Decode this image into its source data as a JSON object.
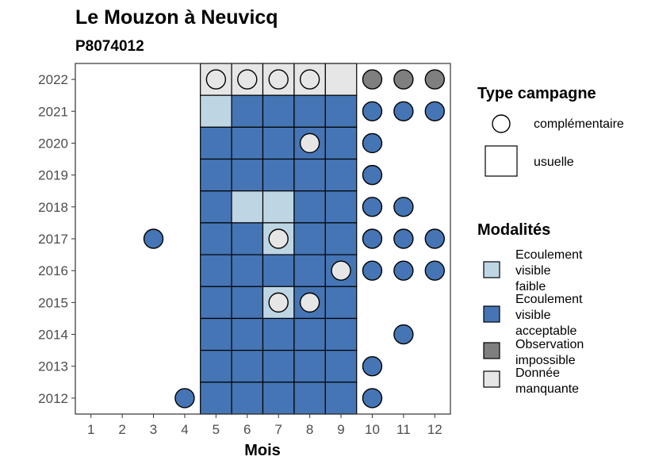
{
  "chart_data": {
    "type": "heatmap",
    "title": "Le Mouzon à Neuvicq",
    "subtitle": "P8074012",
    "xlabel": "Mois",
    "ylabel": "",
    "x_ticks": [
      "1",
      "2",
      "3",
      "4",
      "5",
      "6",
      "7",
      "8",
      "9",
      "10",
      "11",
      "12"
    ],
    "y_ticks": [
      "2022",
      "2021",
      "2020",
      "2019",
      "2018",
      "2017",
      "2016",
      "2015",
      "2014",
      "2013",
      "2012"
    ],
    "grid": false,
    "colors": {
      "Ecoulement visible faible": "#bed6e4",
      "Ecoulement visible acceptable": "#4575b4",
      "Observation impossible": "#7f7f7f",
      "Donnée manquante": "#e6e6e6"
    },
    "legend_type": {
      "title": "Type campagne",
      "items": [
        {
          "label": "complémentaire",
          "shape": "circle"
        },
        {
          "label": "usuelle",
          "shape": "square"
        }
      ]
    },
    "legend_modalites": {
      "title": "Modalités",
      "items": [
        {
          "key": "Ecoulement visible faible",
          "lines": [
            "Ecoulement",
            "visible",
            "faible"
          ]
        },
        {
          "key": "Ecoulement visible acceptable",
          "lines": [
            "Ecoulement",
            "visible",
            "acceptable"
          ]
        },
        {
          "key": "Observation impossible",
          "lines": [
            "Observation",
            "impossible"
          ]
        },
        {
          "key": "Donnée manquante",
          "lines": [
            "Donnée",
            "manquante"
          ]
        }
      ]
    },
    "usuelle": [
      {
        "year": "2022",
        "month": 5,
        "modalite": "Donnée manquante"
      },
      {
        "year": "2022",
        "month": 6,
        "modalite": "Donnée manquante"
      },
      {
        "year": "2022",
        "month": 7,
        "modalite": "Donnée manquante"
      },
      {
        "year": "2022",
        "month": 8,
        "modalite": "Donnée manquante"
      },
      {
        "year": "2022",
        "month": 9,
        "modalite": "Donnée manquante"
      },
      {
        "year": "2021",
        "month": 5,
        "modalite": "Ecoulement visible faible"
      },
      {
        "year": "2021",
        "month": 6,
        "modalite": "Ecoulement visible acceptable"
      },
      {
        "year": "2021",
        "month": 7,
        "modalite": "Ecoulement visible acceptable"
      },
      {
        "year": "2021",
        "month": 8,
        "modalite": "Ecoulement visible acceptable"
      },
      {
        "year": "2021",
        "month": 9,
        "modalite": "Ecoulement visible acceptable"
      },
      {
        "year": "2020",
        "month": 5,
        "modalite": "Ecoulement visible acceptable"
      },
      {
        "year": "2020",
        "month": 6,
        "modalite": "Ecoulement visible acceptable"
      },
      {
        "year": "2020",
        "month": 7,
        "modalite": "Ecoulement visible acceptable"
      },
      {
        "year": "2020",
        "month": 8,
        "modalite": "Ecoulement visible acceptable"
      },
      {
        "year": "2020",
        "month": 9,
        "modalite": "Ecoulement visible acceptable"
      },
      {
        "year": "2019",
        "month": 5,
        "modalite": "Ecoulement visible acceptable"
      },
      {
        "year": "2019",
        "month": 6,
        "modalite": "Ecoulement visible acceptable"
      },
      {
        "year": "2019",
        "month": 7,
        "modalite": "Ecoulement visible acceptable"
      },
      {
        "year": "2019",
        "month": 8,
        "modalite": "Ecoulement visible acceptable"
      },
      {
        "year": "2019",
        "month": 9,
        "modalite": "Ecoulement visible acceptable"
      },
      {
        "year": "2018",
        "month": 5,
        "modalite": "Ecoulement visible acceptable"
      },
      {
        "year": "2018",
        "month": 6,
        "modalite": "Ecoulement visible faible"
      },
      {
        "year": "2018",
        "month": 7,
        "modalite": "Ecoulement visible faible"
      },
      {
        "year": "2018",
        "month": 8,
        "modalite": "Ecoulement visible acceptable"
      },
      {
        "year": "2018",
        "month": 9,
        "modalite": "Ecoulement visible acceptable"
      },
      {
        "year": "2017",
        "month": 5,
        "modalite": "Ecoulement visible acceptable"
      },
      {
        "year": "2017",
        "month": 6,
        "modalite": "Ecoulement visible acceptable"
      },
      {
        "year": "2017",
        "month": 7,
        "modalite": "Ecoulement visible faible"
      },
      {
        "year": "2017",
        "month": 8,
        "modalite": "Ecoulement visible acceptable"
      },
      {
        "year": "2017",
        "month": 9,
        "modalite": "Ecoulement visible acceptable"
      },
      {
        "year": "2016",
        "month": 5,
        "modalite": "Ecoulement visible acceptable"
      },
      {
        "year": "2016",
        "month": 6,
        "modalite": "Ecoulement visible acceptable"
      },
      {
        "year": "2016",
        "month": 7,
        "modalite": "Ecoulement visible acceptable"
      },
      {
        "year": "2016",
        "month": 8,
        "modalite": "Ecoulement visible acceptable"
      },
      {
        "year": "2016",
        "month": 9,
        "modalite": "Ecoulement visible acceptable"
      },
      {
        "year": "2015",
        "month": 5,
        "modalite": "Ecoulement visible acceptable"
      },
      {
        "year": "2015",
        "month": 6,
        "modalite": "Ecoulement visible acceptable"
      },
      {
        "year": "2015",
        "month": 7,
        "modalite": "Ecoulement visible faible"
      },
      {
        "year": "2015",
        "month": 8,
        "modalite": "Ecoulement visible acceptable"
      },
      {
        "year": "2015",
        "month": 9,
        "modalite": "Ecoulement visible acceptable"
      },
      {
        "year": "2014",
        "month": 5,
        "modalite": "Ecoulement visible acceptable"
      },
      {
        "year": "2014",
        "month": 6,
        "modalite": "Ecoulement visible acceptable"
      },
      {
        "year": "2014",
        "month": 7,
        "modalite": "Ecoulement visible acceptable"
      },
      {
        "year": "2014",
        "month": 8,
        "modalite": "Ecoulement visible acceptable"
      },
      {
        "year": "2014",
        "month": 9,
        "modalite": "Ecoulement visible acceptable"
      },
      {
        "year": "2013",
        "month": 5,
        "modalite": "Ecoulement visible acceptable"
      },
      {
        "year": "2013",
        "month": 6,
        "modalite": "Ecoulement visible acceptable"
      },
      {
        "year": "2013",
        "month": 7,
        "modalite": "Ecoulement visible acceptable"
      },
      {
        "year": "2013",
        "month": 8,
        "modalite": "Ecoulement visible acceptable"
      },
      {
        "year": "2013",
        "month": 9,
        "modalite": "Ecoulement visible acceptable"
      },
      {
        "year": "2012",
        "month": 5,
        "modalite": "Ecoulement visible acceptable"
      },
      {
        "year": "2012",
        "month": 6,
        "modalite": "Ecoulement visible acceptable"
      },
      {
        "year": "2012",
        "month": 7,
        "modalite": "Ecoulement visible acceptable"
      },
      {
        "year": "2012",
        "month": 8,
        "modalite": "Ecoulement visible acceptable"
      },
      {
        "year": "2012",
        "month": 9,
        "modalite": "Ecoulement visible acceptable"
      }
    ],
    "complementaire": [
      {
        "year": "2022",
        "month": 5,
        "modalite": "Donnée manquante"
      },
      {
        "year": "2022",
        "month": 6,
        "modalite": "Donnée manquante"
      },
      {
        "year": "2022",
        "month": 7,
        "modalite": "Donnée manquante"
      },
      {
        "year": "2022",
        "month": 8,
        "modalite": "Donnée manquante"
      },
      {
        "year": "2022",
        "month": 10,
        "modalite": "Observation impossible"
      },
      {
        "year": "2022",
        "month": 11,
        "modalite": "Observation impossible"
      },
      {
        "year": "2022",
        "month": 12,
        "modalite": "Observation impossible"
      },
      {
        "year": "2021",
        "month": 10,
        "modalite": "Ecoulement visible acceptable"
      },
      {
        "year": "2021",
        "month": 11,
        "modalite": "Ecoulement visible acceptable"
      },
      {
        "year": "2021",
        "month": 12,
        "modalite": "Ecoulement visible acceptable"
      },
      {
        "year": "2020",
        "month": 8,
        "modalite": "Donnée manquante"
      },
      {
        "year": "2020",
        "month": 10,
        "modalite": "Ecoulement visible acceptable"
      },
      {
        "year": "2019",
        "month": 10,
        "modalite": "Ecoulement visible acceptable"
      },
      {
        "year": "2018",
        "month": 10,
        "modalite": "Ecoulement visible acceptable"
      },
      {
        "year": "2018",
        "month": 11,
        "modalite": "Ecoulement visible acceptable"
      },
      {
        "year": "2017",
        "month": 3,
        "modalite": "Ecoulement visible acceptable"
      },
      {
        "year": "2017",
        "month": 7,
        "modalite": "Donnée manquante"
      },
      {
        "year": "2017",
        "month": 10,
        "modalite": "Ecoulement visible acceptable"
      },
      {
        "year": "2017",
        "month": 11,
        "modalite": "Ecoulement visible acceptable"
      },
      {
        "year": "2017",
        "month": 12,
        "modalite": "Ecoulement visible acceptable"
      },
      {
        "year": "2016",
        "month": 9,
        "modalite": "Donnée manquante"
      },
      {
        "year": "2016",
        "month": 10,
        "modalite": "Ecoulement visible acceptable"
      },
      {
        "year": "2016",
        "month": 11,
        "modalite": "Ecoulement visible acceptable"
      },
      {
        "year": "2016",
        "month": 12,
        "modalite": "Ecoulement visible acceptable"
      },
      {
        "year": "2015",
        "month": 7,
        "modalite": "Donnée manquante"
      },
      {
        "year": "2015",
        "month": 8,
        "modalite": "Donnée manquante"
      },
      {
        "year": "2014",
        "month": 11,
        "modalite": "Ecoulement visible acceptable"
      },
      {
        "year": "2013",
        "month": 10,
        "modalite": "Ecoulement visible acceptable"
      },
      {
        "year": "2012",
        "month": 4,
        "modalite": "Ecoulement visible acceptable"
      },
      {
        "year": "2012",
        "month": 10,
        "modalite": "Ecoulement visible acceptable"
      }
    ]
  }
}
